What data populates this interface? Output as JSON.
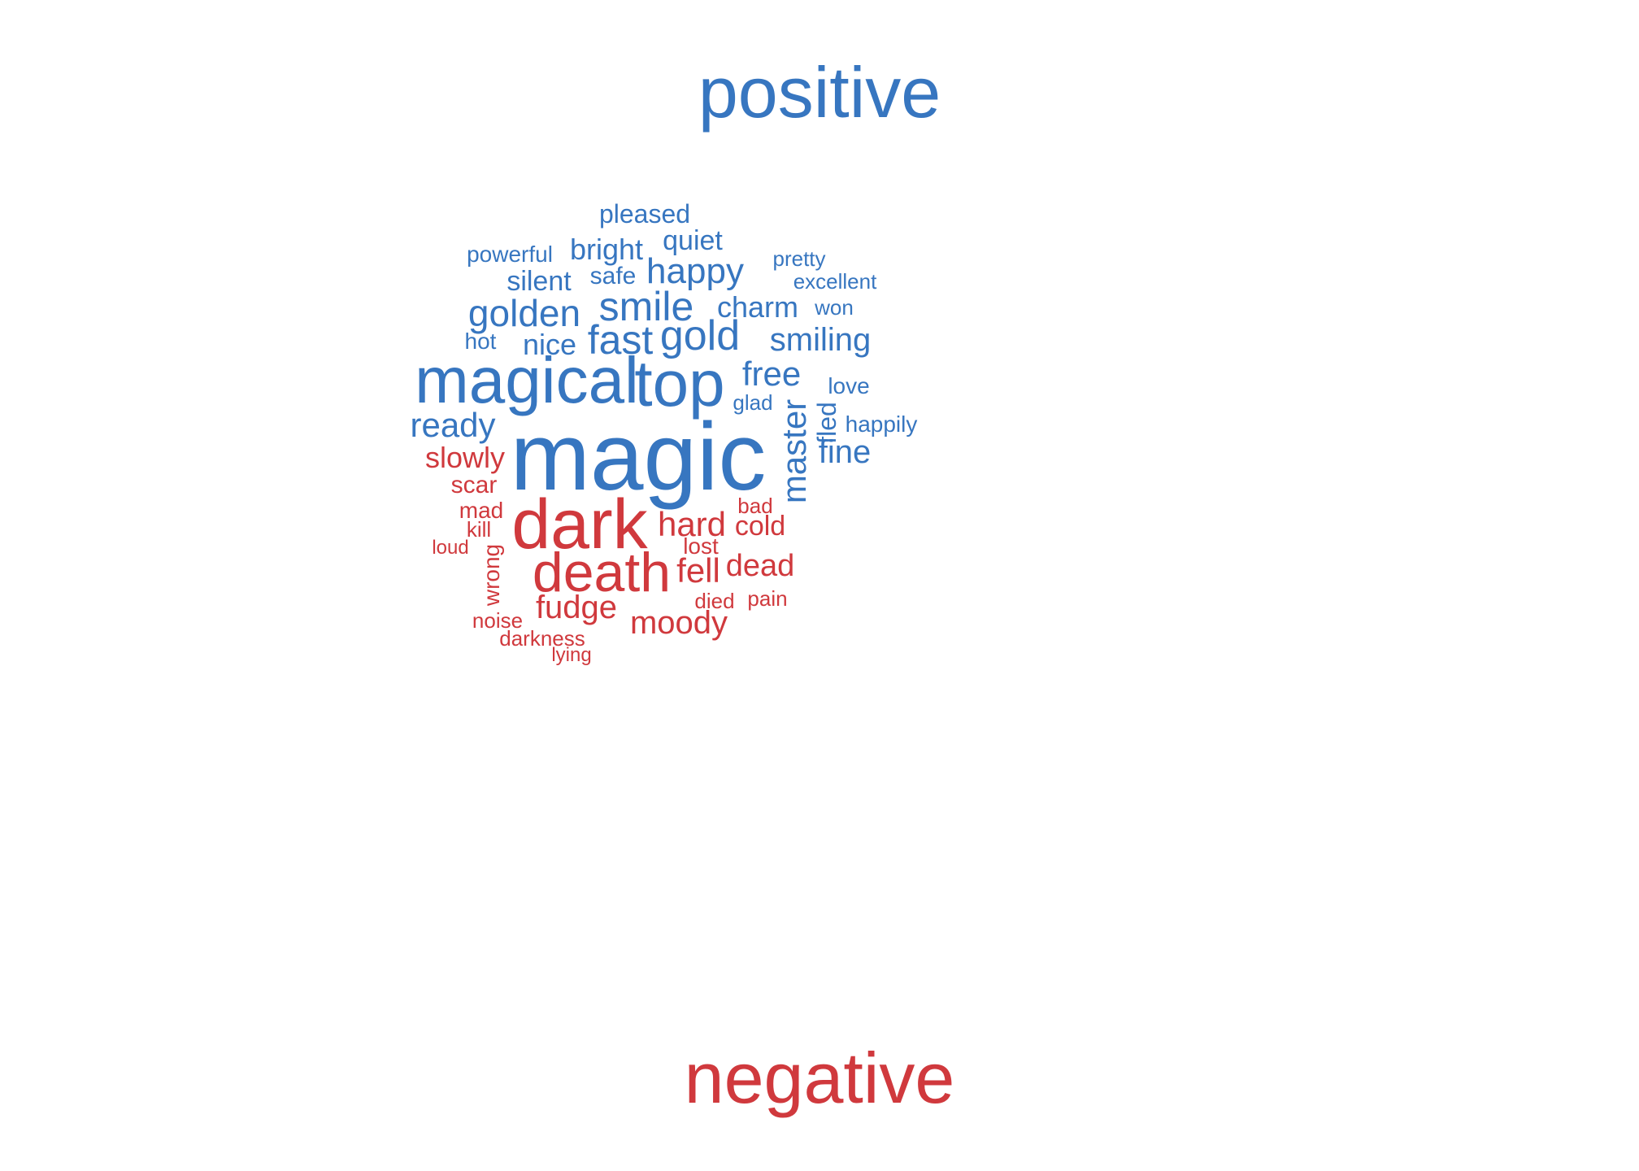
{
  "headings": {
    "positive": "positive",
    "negative": "negative"
  },
  "colors": {
    "positive": "#3776c0",
    "negative": "#d0393d"
  },
  "words": {
    "positive": [
      {
        "text": "magic",
        "rotated": false
      },
      {
        "text": "magical",
        "rotated": false
      },
      {
        "text": "top",
        "rotated": false
      },
      {
        "text": "gold",
        "rotated": false
      },
      {
        "text": "fast",
        "rotated": false
      },
      {
        "text": "smile",
        "rotated": false
      },
      {
        "text": "golden",
        "rotated": false
      },
      {
        "text": "happy",
        "rotated": false
      },
      {
        "text": "free",
        "rotated": false
      },
      {
        "text": "master",
        "rotated": true
      },
      {
        "text": "ready",
        "rotated": false
      },
      {
        "text": "smiling",
        "rotated": false
      },
      {
        "text": "fine",
        "rotated": false
      },
      {
        "text": "charm",
        "rotated": false
      },
      {
        "text": "bright",
        "rotated": false
      },
      {
        "text": "quiet",
        "rotated": false
      },
      {
        "text": "nice",
        "rotated": false
      },
      {
        "text": "pleased",
        "rotated": false
      },
      {
        "text": "silent",
        "rotated": false
      },
      {
        "text": "safe",
        "rotated": false
      },
      {
        "text": "fled",
        "rotated": true
      },
      {
        "text": "powerful",
        "rotated": false
      },
      {
        "text": "hot",
        "rotated": false
      },
      {
        "text": "glad",
        "rotated": false
      },
      {
        "text": "love",
        "rotated": false
      },
      {
        "text": "happily",
        "rotated": false
      },
      {
        "text": "won",
        "rotated": false
      },
      {
        "text": "excellent",
        "rotated": false
      },
      {
        "text": "pretty",
        "rotated": false
      }
    ],
    "negative": [
      {
        "text": "dark",
        "rotated": false
      },
      {
        "text": "death",
        "rotated": false
      },
      {
        "text": "hard",
        "rotated": false
      },
      {
        "text": "fell",
        "rotated": false
      },
      {
        "text": "dead",
        "rotated": false
      },
      {
        "text": "fudge",
        "rotated": false
      },
      {
        "text": "moody",
        "rotated": false
      },
      {
        "text": "slowly",
        "rotated": false
      },
      {
        "text": "cold",
        "rotated": false
      },
      {
        "text": "wrong",
        "rotated": true
      },
      {
        "text": "scar",
        "rotated": false
      },
      {
        "text": "mad",
        "rotated": false
      },
      {
        "text": "lost",
        "rotated": false
      },
      {
        "text": "bad",
        "rotated": false
      },
      {
        "text": "kill",
        "rotated": false
      },
      {
        "text": "loud",
        "rotated": false
      },
      {
        "text": "died",
        "rotated": false
      },
      {
        "text": "pain",
        "rotated": false
      },
      {
        "text": "noise",
        "rotated": false
      },
      {
        "text": "darkness",
        "rotated": false
      },
      {
        "text": "lying",
        "rotated": false
      }
    ]
  }
}
